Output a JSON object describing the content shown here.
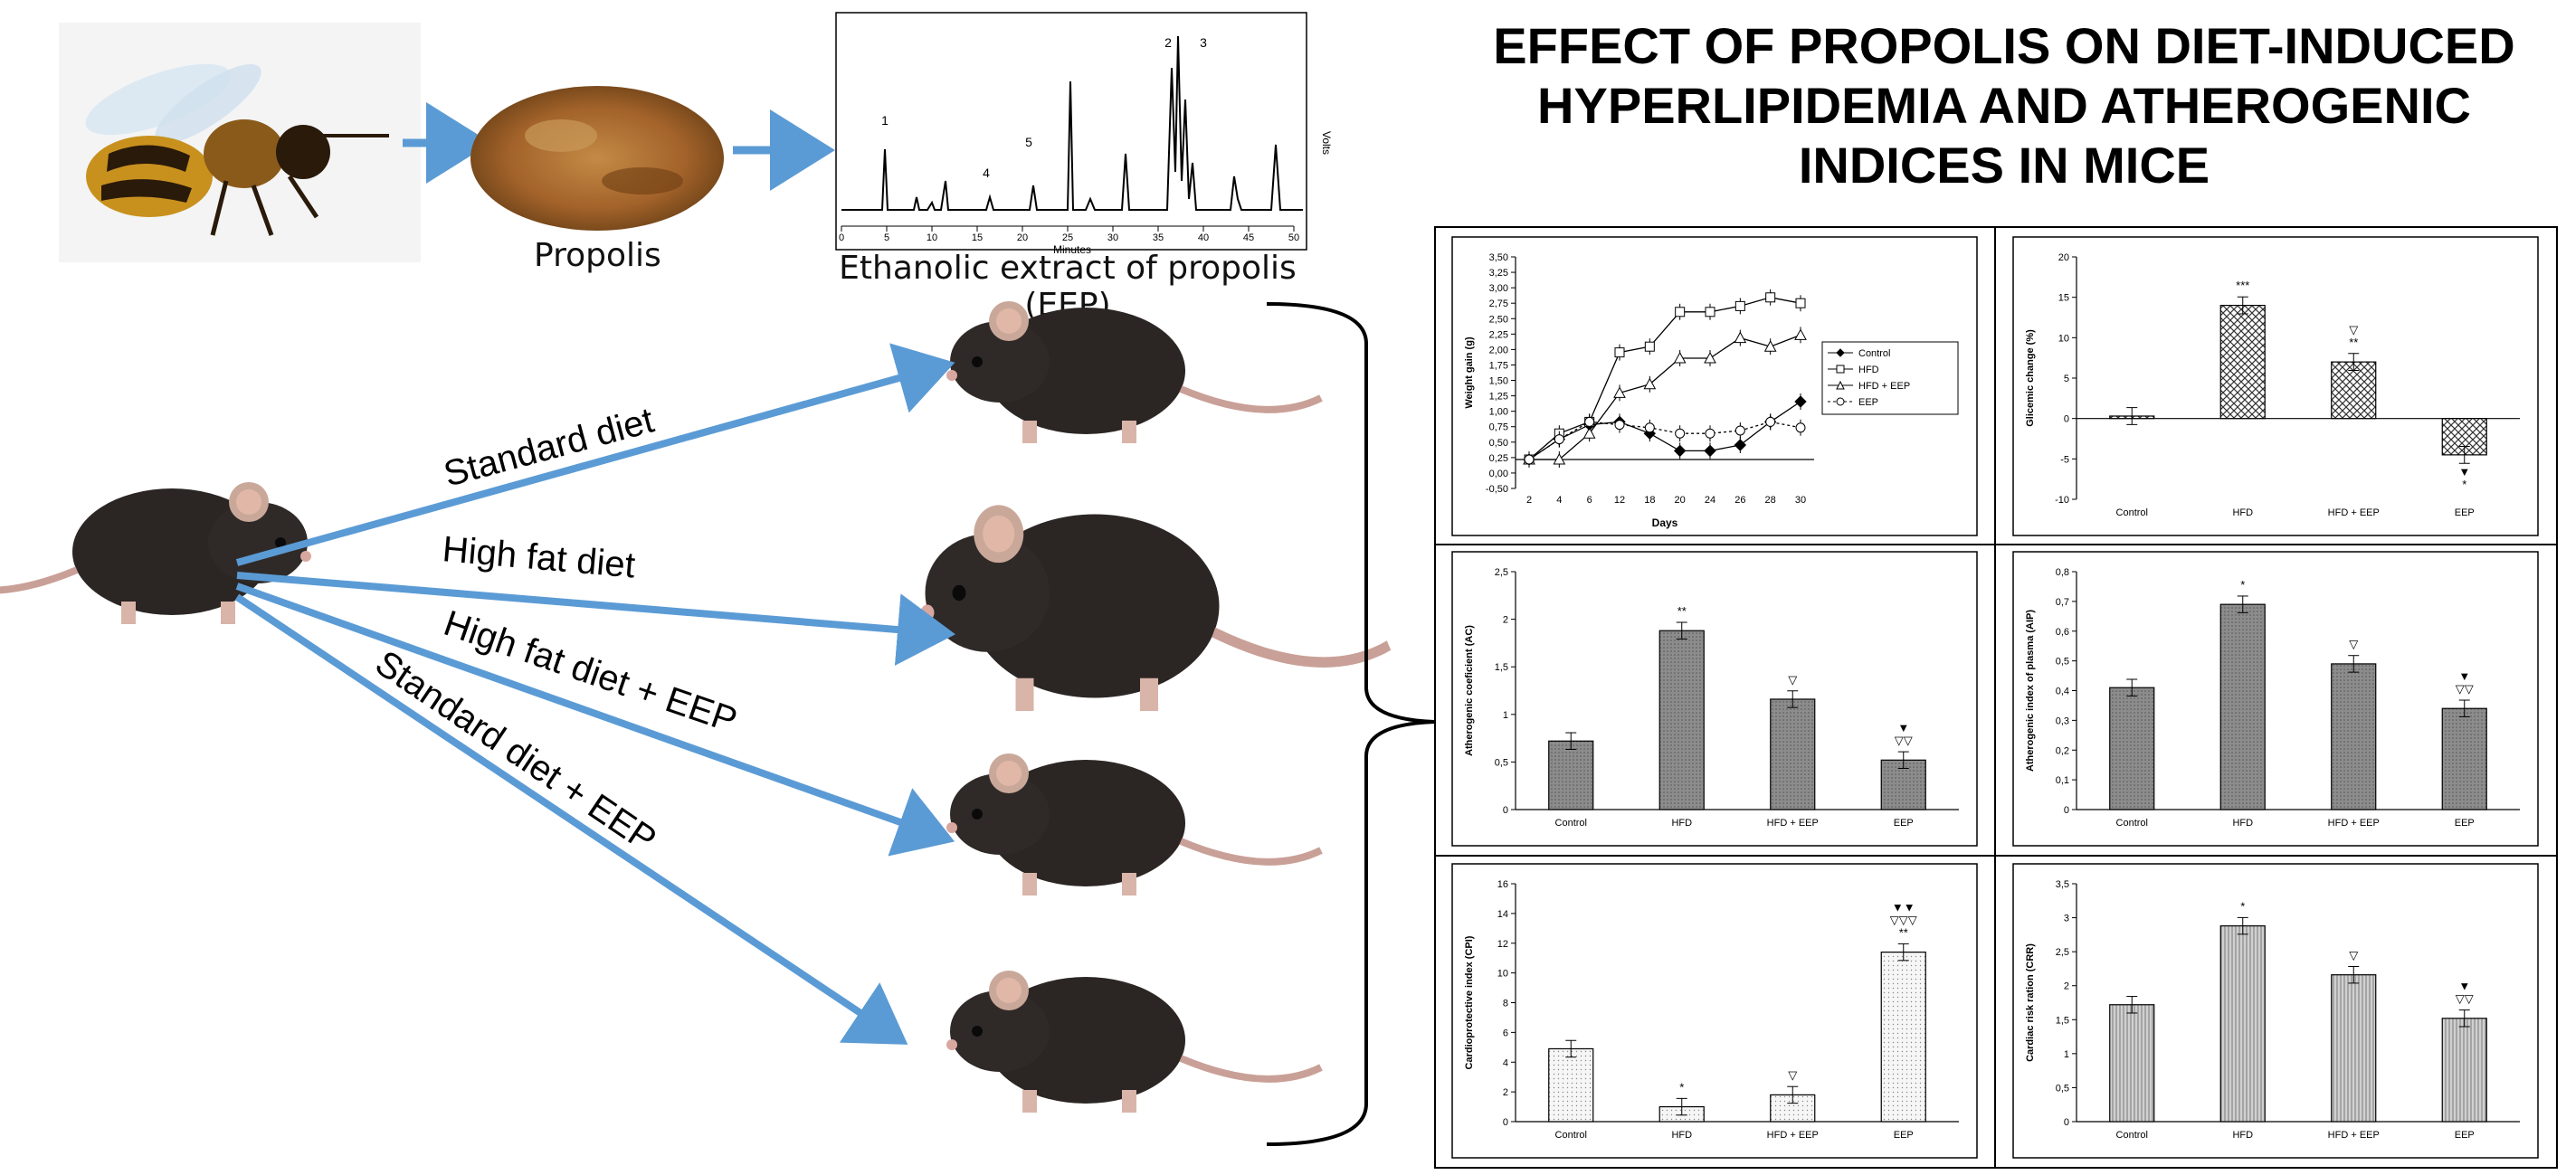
{
  "title": "EFFECT OF PROPOLIS ON DIET-INDUCED HYPERLIPIDEMIA AND ATHEROGENIC INDICES IN MICE",
  "labels": {
    "propolis": "Propolis",
    "eep": "Ethanolic extract of propolis (EEP)",
    "chrom_xlabel": "Minutes",
    "chrom_ylabel": "Volts"
  },
  "diets": [
    {
      "label": "Standard diet"
    },
    {
      "label": "High fat diet"
    },
    {
      "label": "High fat diet + EEP"
    },
    {
      "label": "Standard diet + EEP"
    }
  ],
  "chromatogram": {
    "x_ticks": [
      "0",
      "5",
      "10",
      "15",
      "20",
      "25",
      "30",
      "35",
      "40",
      "45",
      "50"
    ],
    "peak_labels": [
      "1",
      "2",
      "3",
      "4",
      "5"
    ]
  },
  "colors": {
    "arrow": "#5b9bd5",
    "bar_fill": "#9a9a9a",
    "bar_light": "#dcdcdc",
    "border": "#000000"
  },
  "chart_data": [
    {
      "type": "line",
      "ylabel": "Weight gain (g)",
      "xlabel": "Days",
      "x": [
        2,
        4,
        6,
        12,
        18,
        20,
        24,
        26,
        28,
        30
      ],
      "y_ticks": [
        "-0,50",
        "0,00",
        "0,25",
        "0,50",
        "0,75",
        "1,00",
        "1,25",
        "1,50",
        "1,75",
        "2,00",
        "2,25",
        "2,50",
        "2,75",
        "3,00",
        "3,25",
        "3,50"
      ],
      "x_ticks": [
        "2",
        "4",
        "6",
        "12",
        "18",
        "20",
        "24",
        "26",
        "28",
        "30"
      ],
      "ylim": [
        -0.5,
        3.5
      ],
      "series": [
        {
          "name": "Control",
          "values": [
            0.0,
            0.35,
            0.6,
            0.65,
            0.45,
            0.15,
            0.15,
            0.25,
            0.65,
            1.0
          ]
        },
        {
          "name": "HFD",
          "values": [
            0.0,
            0.45,
            0.65,
            1.85,
            1.95,
            2.55,
            2.55,
            2.65,
            2.8,
            2.7
          ]
        },
        {
          "name": "HFD + EEP",
          "values": [
            0.0,
            0.0,
            0.45,
            1.15,
            1.3,
            1.75,
            1.75,
            2.1,
            1.95,
            2.15
          ]
        },
        {
          "name": "EEP",
          "values": [
            0.0,
            0.35,
            0.65,
            0.6,
            0.55,
            0.45,
            0.45,
            0.5,
            0.65,
            0.55
          ]
        }
      ]
    },
    {
      "type": "bar",
      "ylabel": "Glicemic change (%)",
      "categories": [
        "Control",
        "HFD",
        "HFD + EEP",
        "EEP"
      ],
      "values": [
        0.3,
        14,
        7,
        -4.5
      ],
      "ylim": [
        -10,
        20
      ],
      "y_ticks": [
        "-10",
        "-5",
        "0",
        "5",
        "10",
        "15",
        "20"
      ],
      "annotations": [
        "",
        "***",
        "▽ **",
        "▼ *"
      ]
    },
    {
      "type": "bar",
      "ylabel": "Atherogenic coeficient (AC)",
      "categories": [
        "Control",
        "HFD",
        "HFD + EEP",
        "EEP"
      ],
      "values": [
        0.72,
        1.88,
        1.16,
        0.52
      ],
      "ylim": [
        0,
        2.5
      ],
      "y_ticks": [
        "0",
        "0,5",
        "1",
        "1,5",
        "2",
        "2,5"
      ],
      "annotations": [
        "",
        "**",
        "▽",
        "▼ ▽▽"
      ]
    },
    {
      "type": "bar",
      "ylabel": "Atherogenic index of plasma (AIP)",
      "categories": [
        "Control",
        "HFD",
        "HFD + EEP",
        "EEP"
      ],
      "values": [
        0.41,
        0.69,
        0.49,
        0.34
      ],
      "ylim": [
        0,
        0.8
      ],
      "y_ticks": [
        "0",
        "0,1",
        "0,2",
        "0,3",
        "0,4",
        "0,5",
        "0,6",
        "0,7",
        "0,8"
      ],
      "annotations": [
        "",
        "*",
        "▽",
        "▼ ▽▽"
      ]
    },
    {
      "type": "bar",
      "ylabel": "Cardioprotective index (CPI)",
      "categories": [
        "Control",
        "HFD",
        "HFD + EEP",
        "EEP"
      ],
      "values": [
        4.9,
        1.0,
        1.8,
        11.4
      ],
      "ylim": [
        0,
        16
      ],
      "y_ticks": [
        "0",
        "2",
        "4",
        "6",
        "8",
        "10",
        "12",
        "14",
        "16"
      ],
      "annotations": [
        "",
        "*",
        "▽",
        "▼▼ ▽▽▽ **"
      ]
    },
    {
      "type": "bar",
      "ylabel": "Cardiac risk ration (CRR)",
      "categories": [
        "Control",
        "HFD",
        "HFD + EEP",
        "EEP"
      ],
      "values": [
        1.72,
        2.88,
        2.16,
        1.52
      ],
      "ylim": [
        0,
        3.5
      ],
      "y_ticks": [
        "0",
        "0,5",
        "1",
        "1,5",
        "2",
        "2,5",
        "3",
        "3,5"
      ],
      "annotations": [
        "",
        "*",
        "▽",
        "▼ ▽▽"
      ]
    }
  ]
}
